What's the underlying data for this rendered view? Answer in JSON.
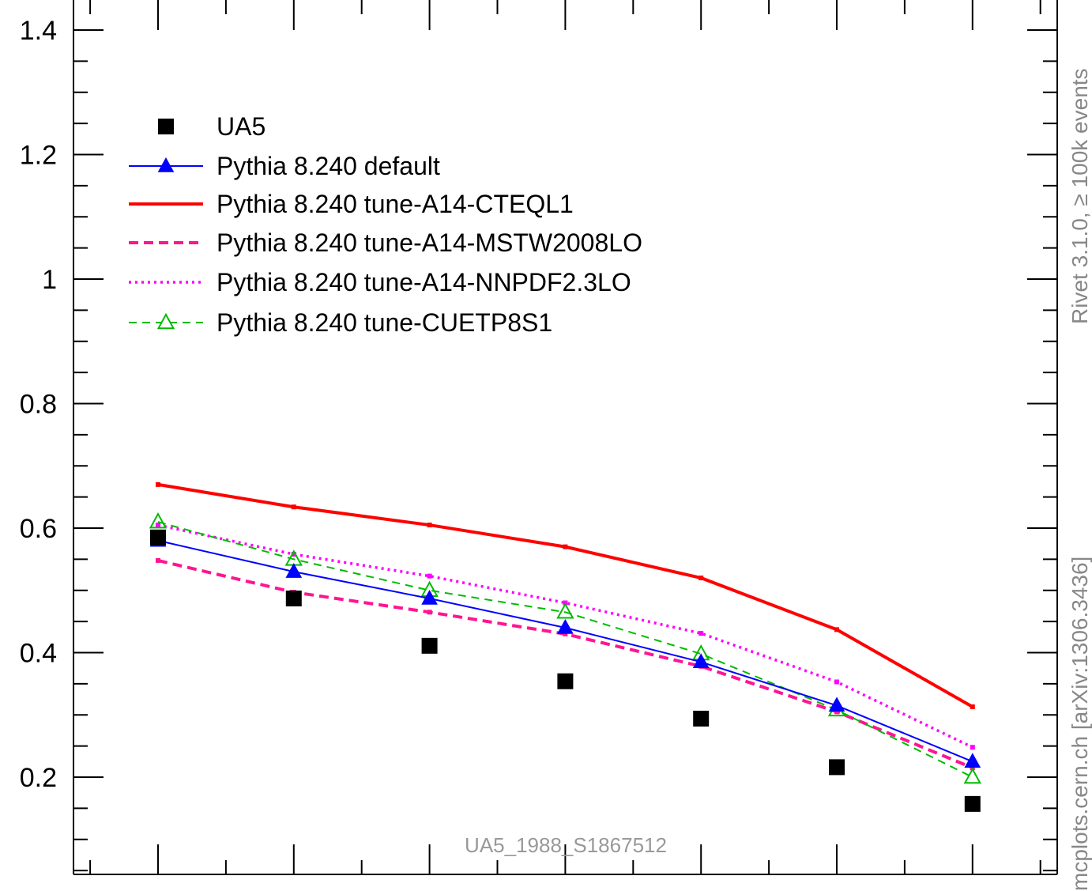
{
  "chart_data": {
    "type": "line",
    "title": "",
    "xlabel": "",
    "ylabel": "",
    "ylim": [
      0,
      1.45
    ],
    "y_ticks": [
      {
        "value": 0.2,
        "label": "0.2"
      },
      {
        "value": 0.4,
        "label": "0.4"
      },
      {
        "value": 0.6,
        "label": "0.6"
      },
      {
        "value": 0.8,
        "label": "0.8"
      },
      {
        "value": 1.0,
        "label": "1"
      },
      {
        "value": 1.2,
        "label": "1.2"
      },
      {
        "value": 1.4,
        "label": "1.4"
      }
    ],
    "x": [
      1,
      2,
      3,
      4,
      5,
      6,
      7
    ],
    "grid": false,
    "legend_position": "top-left",
    "series": [
      {
        "name": "UA5",
        "style": "data",
        "color": "#000000",
        "values": [
          0.585,
          0.487,
          0.411,
          0.354,
          0.294,
          0.216,
          0.157
        ]
      },
      {
        "name": "Pythia 8.240 default",
        "style": "solid-thin-triangle",
        "color": "#0000ff",
        "values": [
          0.58,
          0.53,
          0.487,
          0.44,
          0.385,
          0.315,
          0.225
        ]
      },
      {
        "name": "Pythia 8.240 tune-A14-CTEQL1",
        "style": "solid-thick",
        "color": "#ff0000",
        "values": [
          0.67,
          0.634,
          0.605,
          0.57,
          0.52,
          0.437,
          0.313
        ]
      },
      {
        "name": "Pythia 8.240 tune-A14-MSTW2008LO",
        "style": "dashed-thick",
        "color": "#ff1493",
        "values": [
          0.548,
          0.497,
          0.465,
          0.43,
          0.378,
          0.305,
          0.215
        ]
      },
      {
        "name": "Pythia 8.240 tune-A14-NNPDF2.3LO",
        "style": "dotted",
        "color": "#ff00ff",
        "values": [
          0.605,
          0.558,
          0.523,
          0.48,
          0.431,
          0.353,
          0.248
        ]
      },
      {
        "name": "Pythia 8.240 tune-CUETP8S1",
        "style": "dashed-thin-open-triangle",
        "color": "#00bb00",
        "values": [
          0.61,
          0.55,
          0.5,
          0.465,
          0.398,
          0.308,
          0.2
        ]
      }
    ]
  },
  "watermark": "UA5_1988_S1867512",
  "side_labels": {
    "rivet": "Rivet 3.1.0, ≥ 100k events",
    "mcplots": "mcplots.cern.ch [arXiv:1306.3436]"
  }
}
